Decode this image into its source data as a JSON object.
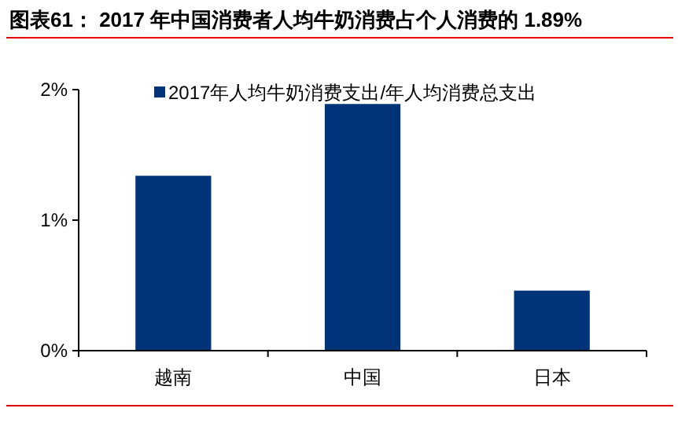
{
  "chart_data": {
    "type": "bar",
    "title": "图表61： 2017 年中国消费者人均牛奶消费占个人消费的 1.89%",
    "categories": [
      "越南",
      "中国",
      "日本"
    ],
    "series": [
      {
        "name": "2017年人均牛奶消费支出/年人均消费总支出",
        "color": "#003378",
        "values": [
          1.34,
          1.89,
          0.46
        ]
      }
    ],
    "ylim": [
      0,
      2
    ],
    "yticks": [
      {
        "value": 0,
        "label": "0%"
      },
      {
        "value": 1,
        "label": "1%"
      },
      {
        "value": 2,
        "label": "2%"
      }
    ],
    "grid": false,
    "legend": "top"
  }
}
